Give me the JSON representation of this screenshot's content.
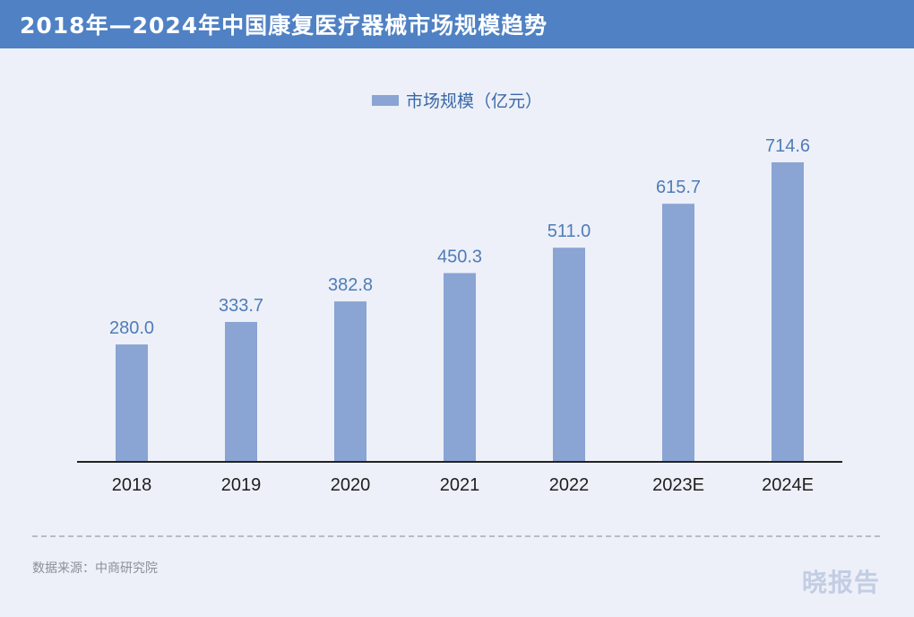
{
  "header": {
    "title": "2018年—2024年中国康复医疗器械市场规模趋势"
  },
  "colors": {
    "title_bar": "#4f81c4",
    "bar": "#8aa4d3",
    "value_label": "#4f7cb8",
    "background": "#edf0f8"
  },
  "chart_data": {
    "type": "bar",
    "title": "2018年—2024年中国康复医疗器械市场规模趋势",
    "categories": [
      "2018",
      "2019",
      "2020",
      "2021",
      "2022",
      "2023E",
      "2024E"
    ],
    "series": [
      {
        "name": "市场规模（亿元）",
        "values": [
          280.0,
          333.7,
          382.8,
          450.3,
          511.0,
          615.7,
          714.6
        ],
        "value_labels": [
          "280.0",
          "333.7",
          "382.8",
          "450.3",
          "511.0",
          "615.7",
          "714.6"
        ]
      }
    ],
    "legend": [
      "市场规模（亿元）"
    ],
    "legend_position": "top-center",
    "xlabel": "",
    "ylabel": "",
    "ylim": [
      0,
      714.6
    ],
    "grid": false
  },
  "footer": {
    "source": "数据来源：中商研究院",
    "watermark": "晓报告"
  }
}
